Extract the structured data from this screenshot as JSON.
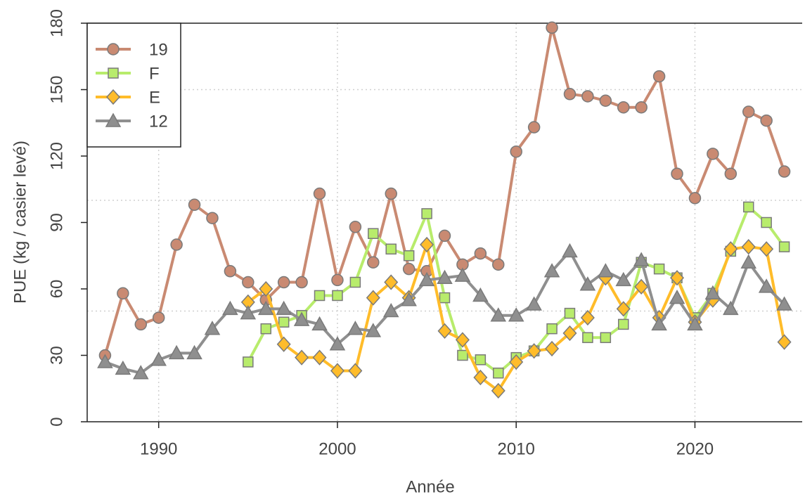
{
  "chart_data": {
    "type": "line",
    "x_label": "Année",
    "y_label": "PUE (kg / casier levé)",
    "xlim": [
      1986,
      2026
    ],
    "xticks": [
      1990,
      2000,
      2010,
      2020
    ],
    "ylim": [
      0,
      180
    ],
    "yticks": [
      0,
      30,
      60,
      90,
      120,
      150,
      180
    ],
    "grid_y": [
      50,
      100,
      150
    ],
    "grid": true,
    "legend": "upper left",
    "series": [
      {
        "name": "19",
        "color": "#c98a72",
        "marker": "circle",
        "x": [
          1987,
          1988,
          1989,
          1990,
          1991,
          1992,
          1993,
          1994,
          1995,
          1996,
          1997,
          1998,
          1999,
          2000,
          2001,
          2002,
          2003,
          2004,
          2005,
          2006,
          2007,
          2008,
          2009,
          2010,
          2011,
          2012,
          2013,
          2014,
          2015,
          2016,
          2017,
          2018,
          2019,
          2020,
          2021,
          2022,
          2023,
          2024,
          2025
        ],
        "values": [
          30,
          58,
          44,
          47,
          80,
          98,
          92,
          68,
          63,
          55,
          63,
          63,
          103,
          64,
          88,
          72,
          103,
          69,
          68,
          84,
          71,
          76,
          71,
          122,
          133,
          178,
          148,
          147,
          145,
          142,
          142,
          156,
          112,
          101,
          121,
          112,
          140,
          136,
          113
        ]
      },
      {
        "name": "F",
        "color": "#b8ec6c",
        "marker": "square",
        "x": [
          1995,
          1996,
          1997,
          1998,
          1999,
          2000,
          2001,
          2002,
          2003,
          2004,
          2005,
          2006,
          2007,
          2008,
          2009,
          2010,
          2011,
          2012,
          2013,
          2014,
          2015,
          2016,
          2017,
          2018,
          2019,
          2020,
          2021,
          2022,
          2023,
          2024,
          2025
        ],
        "values": [
          27,
          42,
          45,
          48,
          57,
          57,
          63,
          85,
          78,
          75,
          94,
          56,
          30,
          28,
          22,
          29,
          32,
          42,
          49,
          38,
          38,
          44,
          72,
          69,
          65,
          47,
          58,
          77,
          97,
          90,
          79
        ]
      },
      {
        "name": "E",
        "color": "#ffbc2a",
        "marker": "diamond",
        "x": [
          1995,
          1996,
          1997,
          1998,
          1999,
          2000,
          2001,
          2002,
          2003,
          2004,
          2005,
          2006,
          2007,
          2008,
          2009,
          2010,
          2011,
          2012,
          2013,
          2014,
          2015,
          2016,
          2017,
          2018,
          2019,
          2020,
          2021,
          2022,
          2023,
          2024,
          2025
        ],
        "values": [
          54,
          60,
          35,
          29,
          29,
          23,
          23,
          56,
          63,
          56,
          80,
          41,
          37,
          20,
          14,
          27,
          32,
          33,
          40,
          47,
          65,
          51,
          61,
          47,
          65,
          45,
          55,
          78,
          79,
          78,
          36
        ]
      },
      {
        "name": "12",
        "color": "#8f8f8f",
        "marker": "triangle",
        "x": [
          1987,
          1988,
          1989,
          1990,
          1991,
          1992,
          1993,
          1994,
          1995,
          1996,
          1997,
          1998,
          1999,
          2000,
          2001,
          2002,
          2003,
          2004,
          2005,
          2006,
          2007,
          2008,
          2009,
          2010,
          2011,
          2012,
          2013,
          2014,
          2015,
          2016,
          2017,
          2018,
          2019,
          2020,
          2021,
          2022,
          2023,
          2024,
          2025
        ],
        "values": [
          27,
          24,
          22,
          28,
          31,
          31,
          42,
          51,
          49,
          51,
          51,
          46,
          44,
          35,
          42,
          41,
          50,
          55,
          64,
          65,
          66,
          57,
          48,
          48,
          53,
          68,
          77,
          62,
          68,
          64,
          73,
          44,
          56,
          44,
          58,
          51,
          72,
          61,
          53
        ]
      }
    ]
  }
}
